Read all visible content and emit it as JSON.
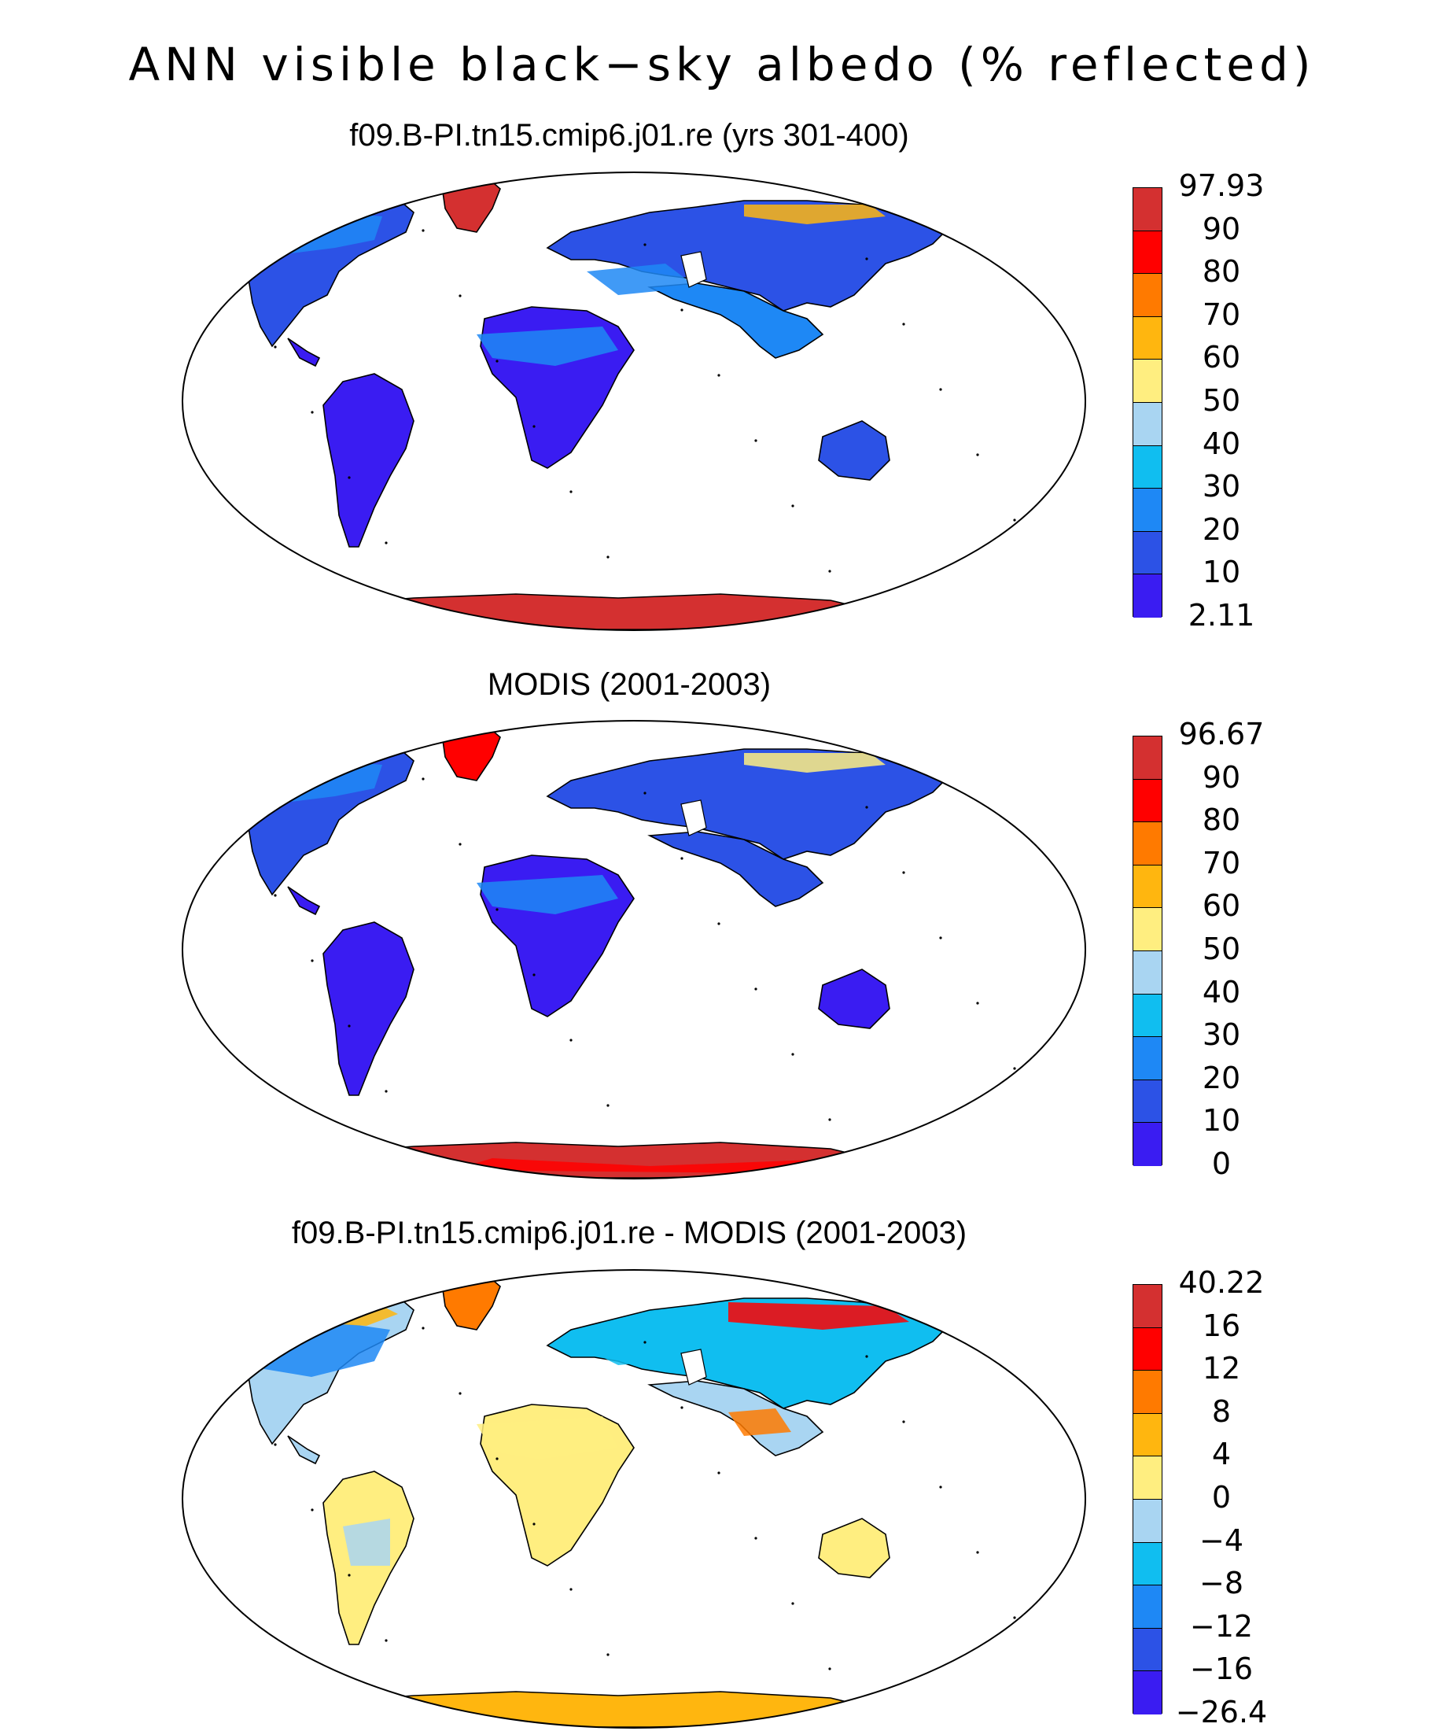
{
  "figure": {
    "title": "ANN visible black−sky albedo (% reflected)"
  },
  "panels": [
    {
      "title": "f09.B-PI.tn15.cmip6.j01.re (yrs 301-400)",
      "colorbar": {
        "labels": [
          "97.93",
          "90",
          "80",
          "70",
          "60",
          "50",
          "40",
          "30",
          "20",
          "10",
          "2.11"
        ],
        "colors": [
          "#d43030",
          "#ff0000",
          "#ff7a00",
          "#ffb60f",
          "#ffee80",
          "#a9d5f2",
          "#10bef0",
          "#1e88f5",
          "#2c52e6",
          "#3a1cf2"
        ]
      }
    },
    {
      "title": "MODIS (2001-2003)",
      "colorbar": {
        "labels": [
          "96.67",
          "90",
          "80",
          "70",
          "60",
          "50",
          "40",
          "30",
          "20",
          "10",
          "0"
        ],
        "colors": [
          "#d43030",
          "#ff0000",
          "#ff7a00",
          "#ffb60f",
          "#ffee80",
          "#a9d5f2",
          "#10bef0",
          "#1e88f5",
          "#2c52e6",
          "#3a1cf2"
        ]
      }
    },
    {
      "title": "f09.B-PI.tn15.cmip6.j01.re - MODIS (2001-2003)",
      "colorbar": {
        "labels": [
          "40.22",
          "16",
          "12",
          "8",
          "4",
          "0",
          "−4",
          "−8",
          "−12",
          "−16",
          "−26.4"
        ],
        "colors": [
          "#d43030",
          "#ff0000",
          "#ff7a00",
          "#ffb60f",
          "#ffee80",
          "#a9d5f2",
          "#10bef0",
          "#1e88f5",
          "#2c52e6",
          "#3a1cf2"
        ]
      }
    }
  ]
}
